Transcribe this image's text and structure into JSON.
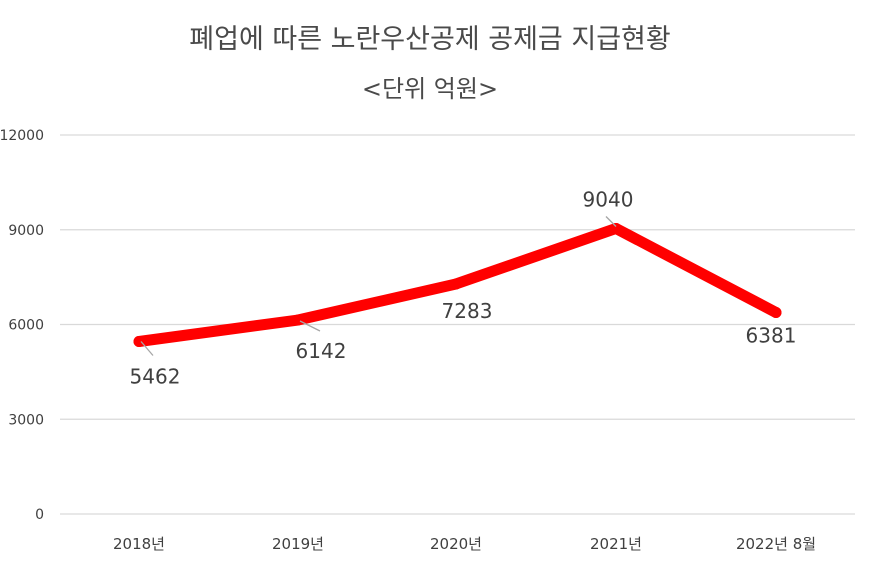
{
  "chart_data": {
    "type": "line",
    "title": "폐업에 따른 노란우산공제 공제금 지급현황",
    "subtitle": "<단위 억원>",
    "categories": [
      "2018년",
      "2019년",
      "2020년",
      "2021년",
      "2022년 8월"
    ],
    "values": [
      5462,
      6142,
      7283,
      9040,
      6381
    ],
    "ylim": [
      0,
      12000
    ],
    "yticks": [
      0,
      3000,
      6000,
      9000,
      12000
    ],
    "grid": true,
    "legend": "none",
    "line_color": "#ff0000",
    "grid_color": "#d9d9d9"
  }
}
